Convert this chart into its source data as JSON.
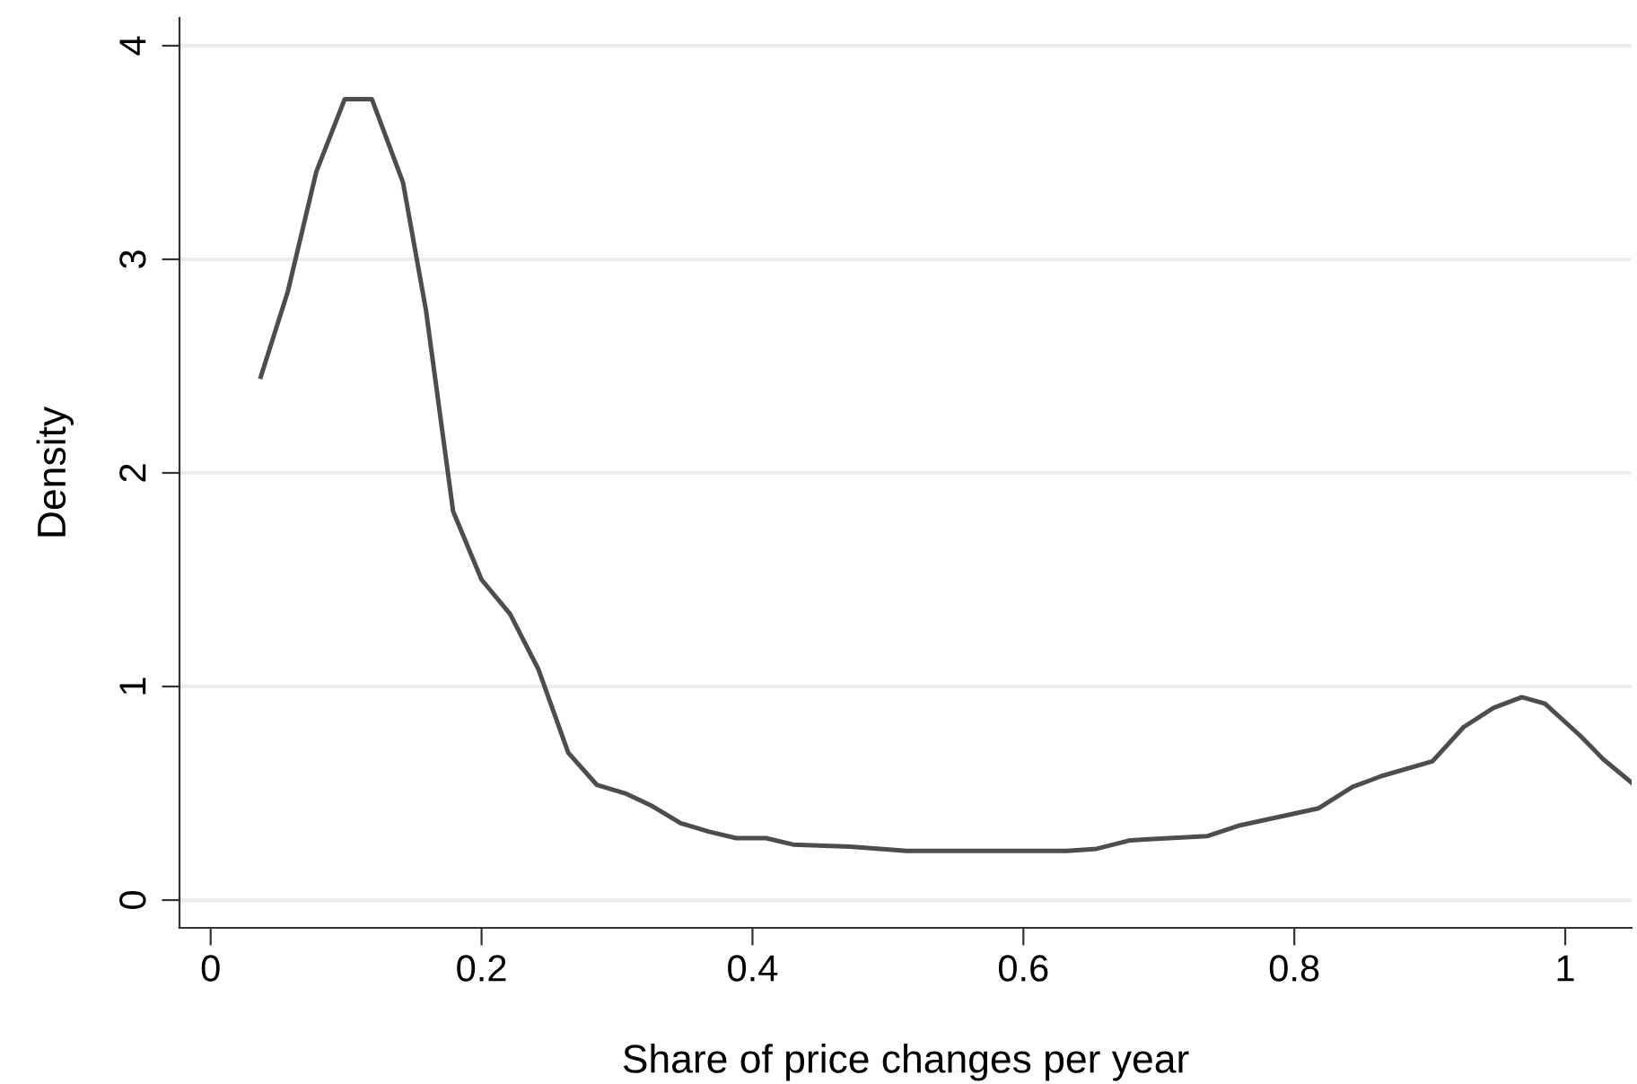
{
  "chart_data": {
    "type": "line",
    "xlabel": "Share of price changes per year",
    "ylabel": "Density",
    "x": [
      0.037,
      0.057,
      0.078,
      0.099,
      0.119,
      0.142,
      0.159,
      0.179,
      0.2,
      0.221,
      0.242,
      0.264,
      0.285,
      0.306,
      0.326,
      0.347,
      0.368,
      0.388,
      0.41,
      0.43,
      0.472,
      0.514,
      0.632,
      0.654,
      0.679,
      0.736,
      0.76,
      0.818,
      0.843,
      0.864,
      0.902,
      0.925,
      0.947,
      0.968,
      0.985,
      1.011,
      1.028,
      1.049
    ],
    "series": [
      {
        "color": "#4d4d4d",
        "values": [
          2.45,
          2.85,
          3.41,
          3.75,
          3.75,
          3.36,
          2.76,
          1.82,
          1.5,
          1.34,
          1.08,
          0.69,
          0.54,
          0.5,
          0.44,
          0.36,
          0.32,
          0.29,
          0.29,
          0.26,
          0.25,
          0.23,
          0.23,
          0.24,
          0.28,
          0.3,
          0.35,
          0.43,
          0.53,
          0.58,
          0.65,
          0.81,
          0.9,
          0.95,
          0.92,
          0.77,
          0.66,
          0.55
        ]
      }
    ],
    "xlim": [
      -0.023,
      1.049
    ],
    "ylim": [
      -0.13,
      4.13
    ],
    "xticks": [
      0,
      0.2,
      0.4,
      0.6,
      0.8,
      {
        "value": 1,
        "label": "1"
      }
    ],
    "yticks": [
      0,
      1,
      2,
      3,
      4
    ],
    "grid": "y",
    "legend": false,
    "marker": "none",
    "line_style": "solid"
  }
}
